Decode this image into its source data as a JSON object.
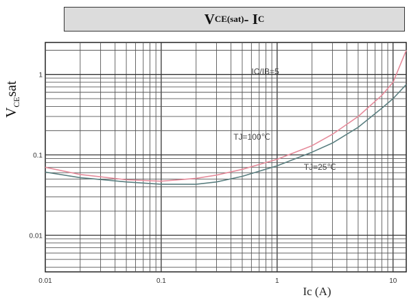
{
  "chart_data": {
    "type": "line",
    "title": {
      "main": "V",
      "sub1": "CE(sat)",
      "dash": "- I",
      "sub2": "C"
    },
    "ylabel": {
      "main": "V",
      "sub": "CE",
      "rest": "sat"
    },
    "xlabel": "Ic (A)",
    "x_scale": "log",
    "y_scale": "log",
    "xlim": [
      0.01,
      13
    ],
    "ylim": [
      0.0035,
      2.5
    ],
    "x_ticks": [
      {
        "value": 0.01,
        "label": "0.01"
      },
      {
        "value": 0.1,
        "label": "0.1"
      },
      {
        "value": 1,
        "label": "1"
      },
      {
        "value": 10,
        "label": "10"
      }
    ],
    "y_ticks": [
      {
        "value": 0.01,
        "label": "0.01"
      },
      {
        "value": 0.1,
        "label": "0.1"
      },
      {
        "value": 1,
        "label": "1"
      }
    ],
    "grid": true,
    "annotations": [
      {
        "text": "IC/IB=5",
        "x": 0.6,
        "y": 1.0
      },
      {
        "text": "TJ=100℃",
        "x": 0.42,
        "y": 0.155
      },
      {
        "text": "TJ=25℃",
        "x": 1.7,
        "y": 0.065
      }
    ],
    "series": [
      {
        "color": "#e58a9a",
        "x": [
          0.01,
          0.02,
          0.05,
          0.1,
          0.2,
          0.3,
          0.5,
          1,
          2,
          3,
          5,
          8,
          10,
          13
        ],
        "y": [
          0.07,
          0.057,
          0.049,
          0.047,
          0.051,
          0.056,
          0.066,
          0.088,
          0.13,
          0.18,
          0.3,
          0.55,
          0.8,
          2.0
        ]
      },
      {
        "color": "#5a7f80",
        "x": [
          0.01,
          0.02,
          0.05,
          0.1,
          0.2,
          0.3,
          0.5,
          1,
          2,
          3,
          5,
          8,
          10,
          13
        ],
        "y": [
          0.061,
          0.052,
          0.046,
          0.043,
          0.043,
          0.046,
          0.054,
          0.073,
          0.108,
          0.14,
          0.22,
          0.38,
          0.5,
          0.75
        ]
      }
    ]
  }
}
